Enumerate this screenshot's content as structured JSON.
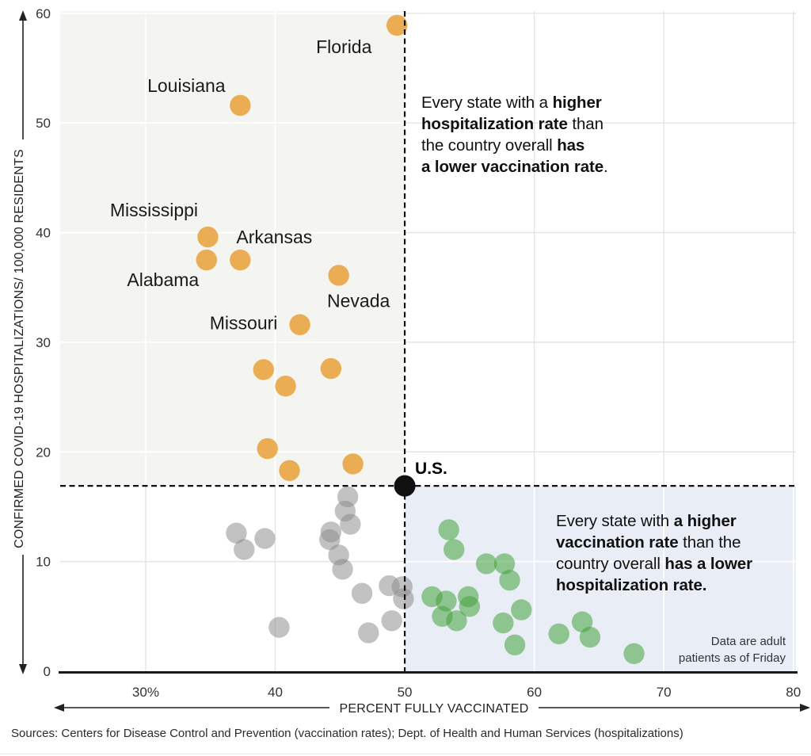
{
  "chart_data": {
    "type": "scatter",
    "title": "",
    "xlabel": "PERCENT FULLY VACCINATED",
    "ylabel": "CONFIRMED COVID-19 HOSPITALIZATIONS/ 100,000 RESIDENTS",
    "xlim": [
      23.4,
      80.2
    ],
    "ylim": [
      0,
      60.2
    ],
    "grid": true,
    "x_ticks": [
      {
        "value": 30,
        "label": "30%"
      },
      {
        "value": 40,
        "label": "40"
      },
      {
        "value": 50,
        "label": "50"
      },
      {
        "value": 60,
        "label": "60"
      },
      {
        "value": 70,
        "label": "70"
      },
      {
        "value": 80,
        "label": "80"
      }
    ],
    "y_ticks": [
      {
        "value": 0,
        "label": "0"
      },
      {
        "value": 10,
        "label": "10"
      },
      {
        "value": 20,
        "label": "20"
      },
      {
        "value": 30,
        "label": "30"
      },
      {
        "value": 40,
        "label": "40"
      },
      {
        "value": 50,
        "label": "50"
      },
      {
        "value": 60,
        "label": "60"
      }
    ],
    "grid_x_values": [
      30,
      40,
      60,
      70,
      80
    ],
    "grid_y_values": [
      10,
      20,
      30,
      40,
      50,
      60
    ],
    "quadrants": {
      "upper_left_color": "#F4F4F1",
      "lower_right_color": "#E9EDF6"
    },
    "reference_point": {
      "label": "U.S.",
      "x": 50,
      "y": 16.9,
      "color": "#111111"
    },
    "series": [
      {
        "name": "states-with-higher-hospitalization-rate",
        "color": "#E8A33C",
        "opacity": 0.88,
        "points": [
          {
            "x": 49.4,
            "y": 58.9,
            "label": "Florida",
            "label_dx": -67,
            "label_dy": 27
          },
          {
            "x": 37.3,
            "y": 51.6,
            "label": "Louisiana",
            "label_dx": -68,
            "label_dy": -25
          },
          {
            "x": 34.8,
            "y": 39.6,
            "label": "Mississippi",
            "label_dx": -68,
            "label_dy": -34
          },
          {
            "x": 34.7,
            "y": 37.5,
            "label": "Alabama",
            "label_dx": -55,
            "label_dy": 25
          },
          {
            "x": 37.3,
            "y": 37.5,
            "label": "Arkansas",
            "label_dx": 43,
            "label_dy": -29
          },
          {
            "x": 44.9,
            "y": 36.1,
            "label": "Nevada",
            "label_dx": 25,
            "label_dy": 32
          },
          {
            "x": 41.9,
            "y": 31.6,
            "label": "Missouri",
            "label_dx": -71,
            "label_dy": -2
          },
          {
            "x": 39.1,
            "y": 27.5
          },
          {
            "x": 40.8,
            "y": 26.0
          },
          {
            "x": 44.3,
            "y": 27.6
          },
          {
            "x": 39.4,
            "y": 20.3
          },
          {
            "x": 41.1,
            "y": 18.3
          },
          {
            "x": 46.0,
            "y": 18.9
          }
        ]
      },
      {
        "name": "states-near-national-rates",
        "color": "#8A8A8A",
        "opacity": 0.52,
        "points": [
          {
            "x": 37.0,
            "y": 12.6
          },
          {
            "x": 37.6,
            "y": 11.1
          },
          {
            "x": 39.2,
            "y": 12.1
          },
          {
            "x": 40.3,
            "y": 4.0
          },
          {
            "x": 44.3,
            "y": 12.7
          },
          {
            "x": 44.2,
            "y": 12.0
          },
          {
            "x": 45.6,
            "y": 15.9
          },
          {
            "x": 45.4,
            "y": 14.6
          },
          {
            "x": 45.8,
            "y": 13.4
          },
          {
            "x": 44.9,
            "y": 10.6
          },
          {
            "x": 45.2,
            "y": 9.3
          },
          {
            "x": 46.7,
            "y": 7.1
          },
          {
            "x": 48.8,
            "y": 7.8
          },
          {
            "x": 49.8,
            "y": 7.7
          },
          {
            "x": 49.9,
            "y": 6.6
          },
          {
            "x": 49.0,
            "y": 4.6
          },
          {
            "x": 47.2,
            "y": 3.5
          }
        ]
      },
      {
        "name": "states-with-higher-vaccination-rate",
        "color": "#44A33A",
        "opacity": 0.55,
        "points": [
          {
            "x": 53.4,
            "y": 12.9
          },
          {
            "x": 53.8,
            "y": 11.1
          },
          {
            "x": 56.3,
            "y": 9.8
          },
          {
            "x": 57.7,
            "y": 9.8
          },
          {
            "x": 58.1,
            "y": 8.3
          },
          {
            "x": 52.1,
            "y": 6.8
          },
          {
            "x": 53.2,
            "y": 6.4
          },
          {
            "x": 52.9,
            "y": 5.0
          },
          {
            "x": 54.9,
            "y": 6.8
          },
          {
            "x": 55.0,
            "y": 5.9
          },
          {
            "x": 54.0,
            "y": 4.6
          },
          {
            "x": 57.6,
            "y": 4.4
          },
          {
            "x": 59.0,
            "y": 5.6
          },
          {
            "x": 58.5,
            "y": 2.4
          },
          {
            "x": 61.9,
            "y": 3.4
          },
          {
            "x": 63.7,
            "y": 4.5
          },
          {
            "x": 64.3,
            "y": 3.1
          },
          {
            "x": 67.7,
            "y": 1.6
          }
        ]
      }
    ],
    "annotations": {
      "upper_runs": [
        {
          "text": "Every state with a ",
          "bold": false
        },
        {
          "text": "higher",
          "bold": true
        },
        {
          "br": true
        },
        {
          "text": "hospitalization rate",
          "bold": true
        },
        {
          "text": " than",
          "bold": false
        },
        {
          "br": true
        },
        {
          "text": "the country overall ",
          "bold": false
        },
        {
          "text": "has",
          "bold": true
        },
        {
          "br": true
        },
        {
          "text": "a lower vaccination rate",
          "bold": true
        },
        {
          "text": ".",
          "bold": false
        }
      ],
      "lower_runs": [
        {
          "text": "Every state with ",
          "bold": false
        },
        {
          "text": "a higher",
          "bold": true
        },
        {
          "br": true
        },
        {
          "text": "vaccination rate",
          "bold": true
        },
        {
          "text": " than the",
          "bold": false
        },
        {
          "br": true
        },
        {
          "text": "country overall ",
          "bold": false
        },
        {
          "text": "has a lower",
          "bold": true
        },
        {
          "br": true
        },
        {
          "text": "hospitalization rate.",
          "bold": true
        }
      ],
      "note_lines": [
        "Data are adult",
        "patients as of Friday"
      ]
    },
    "source": "Sources: Centers for Disease Control and Prevention (vaccination rates); Dept. of Health and Human Services (hospitalizations)"
  }
}
